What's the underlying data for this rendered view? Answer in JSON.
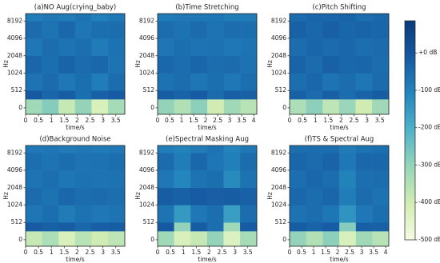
{
  "chart_data": {
    "type": "spectrogram",
    "colormap": [
      "#f5fbe3",
      "#d2edb3",
      "#97d5b9",
      "#4fb3c8",
      "#2386bd",
      "#1659a2",
      "#0a3a78"
    ],
    "yscale": "symlog",
    "linthresh": 512,
    "base": 2,
    "colorbar": {
      "ylim": [
        -500,
        86
      ],
      "yticks": [
        {
          "value": 0,
          "label": "+0 dB"
        },
        {
          "value": -100,
          "label": "-100 dB"
        },
        {
          "value": -200,
          "label": "-200 dB"
        },
        {
          "value": -300,
          "label": "-300 dB"
        },
        {
          "value": -400,
          "label": "-400 dB"
        },
        {
          "value": -500,
          "label": "-500 dB"
        }
      ]
    },
    "panels": [
      {
        "title": "(a)NO Aug(crying_baby)",
        "xlabel": "time/s",
        "ylabel": "Hz",
        "xlim": [
          0,
          3.85
        ],
        "xticks": [
          0,
          0.5,
          1,
          1.5,
          2,
          2.5,
          3,
          3.5
        ],
        "ylim": [
          -190,
          11025
        ],
        "yticks": [
          0,
          512,
          1024,
          2048,
          4096,
          8192
        ],
        "time_bins": [
          0,
          0.64,
          1.28,
          1.92,
          2.56,
          3.2,
          3.85
        ],
        "freq_bins": [
          -190,
          256,
          512,
          1024,
          2048,
          4096,
          8192,
          11025
        ],
        "values": [
          [
            -320,
            -280,
            -380,
            -300,
            -420,
            -330
          ],
          [
            -10,
            -40,
            -20,
            -60,
            -30,
            -15
          ],
          [
            -70,
            -50,
            -80,
            -60,
            -90,
            -55
          ],
          [
            -40,
            -60,
            -35,
            -50,
            -45,
            -70
          ],
          [
            -80,
            -55,
            -70,
            -60,
            -85,
            -65
          ],
          [
            -50,
            -70,
            -45,
            -75,
            -60,
            -55
          ],
          [
            -90,
            -75,
            -85,
            -70,
            -95,
            -80
          ]
        ]
      },
      {
        "title": "(b)Time Stretching",
        "xlabel": "time/s",
        "ylabel": "Hz",
        "xlim": [
          0,
          4.13
        ],
        "xticks": [
          0,
          0.5,
          1,
          1.5,
          2,
          2.5,
          3,
          3.5,
          4
        ],
        "ylim": [
          -190,
          11025
        ],
        "yticks": [
          0,
          512,
          1024,
          2048,
          4096,
          8192
        ],
        "time_bins": [
          0,
          0.69,
          1.38,
          2.07,
          2.76,
          3.45,
          4.13
        ],
        "freq_bins": [
          -190,
          256,
          512,
          1024,
          2048,
          4096,
          8192,
          11025
        ],
        "values": [
          [
            -300,
            -350,
            -290,
            -400,
            -320,
            -360
          ],
          [
            -20,
            -35,
            -15,
            -50,
            -25,
            -30
          ],
          [
            -65,
            -55,
            -75,
            -60,
            -80,
            -60
          ],
          [
            -45,
            -55,
            -40,
            -55,
            -50,
            -65
          ],
          [
            -75,
            -60,
            -70,
            -65,
            -80,
            -70
          ],
          [
            -55,
            -65,
            -50,
            -70,
            -55,
            -60
          ],
          [
            -85,
            -80,
            -80,
            -75,
            -90,
            -85
          ]
        ]
      },
      {
        "title": "(c)Pitch Shifting",
        "xlabel": "time/s",
        "ylabel": "Hz",
        "xlim": [
          0,
          3.85
        ],
        "xticks": [
          0,
          0.5,
          1,
          1.5,
          2,
          2.5,
          3,
          3.5
        ],
        "ylim": [
          -190,
          11025
        ],
        "yticks": [
          0,
          512,
          1024,
          2048,
          4096,
          8192
        ],
        "time_bins": [
          0,
          0.64,
          1.28,
          1.92,
          2.56,
          3.2,
          3.85
        ],
        "freq_bins": [
          -190,
          256,
          512,
          1024,
          2048,
          4096,
          8192,
          11025
        ],
        "values": [
          [
            -340,
            -290,
            -370,
            -310,
            -400,
            -320
          ],
          [
            -30,
            -50,
            -25,
            -55,
            -35,
            -20
          ],
          [
            -60,
            -45,
            -70,
            -55,
            -75,
            -50
          ],
          [
            -35,
            -50,
            -30,
            -45,
            -40,
            -55
          ],
          [
            -55,
            -40,
            -50,
            -45,
            -60,
            -50
          ],
          [
            -30,
            -45,
            -25,
            -40,
            -35,
            -40
          ],
          [
            -50,
            -40,
            -45,
            -35,
            -55,
            -45
          ]
        ]
      },
      {
        "title": "(d)Background Noise",
        "xlabel": "time/s",
        "ylabel": "Hz",
        "xlim": [
          0,
          3.85
        ],
        "xticks": [
          0,
          0.5,
          1,
          1.5,
          2,
          2.5,
          3,
          3.5
        ],
        "ylim": [
          -190,
          11025
        ],
        "yticks": [
          0,
          512,
          1024,
          2048,
          4096,
          8192
        ],
        "time_bins": [
          0,
          0.64,
          1.28,
          1.92,
          2.56,
          3.2,
          3.85
        ],
        "freq_bins": [
          -190,
          256,
          512,
          1024,
          2048,
          4096,
          8192,
          11025
        ],
        "values": [
          [
            -380,
            -340,
            -420,
            -360,
            -400,
            -370
          ],
          [
            -15,
            -30,
            -20,
            -45,
            -25,
            -20
          ],
          [
            -75,
            -60,
            -85,
            -65,
            -80,
            -70
          ],
          [
            -50,
            -65,
            -45,
            -55,
            -50,
            -60
          ],
          [
            -70,
            -60,
            -75,
            -65,
            -70,
            -65
          ],
          [
            -60,
            -70,
            -55,
            -70,
            -65,
            -60
          ],
          [
            -80,
            -75,
            -85,
            -80,
            -85,
            -80
          ]
        ]
      },
      {
        "title": "(e)Spectral Masking Aug",
        "xlabel": "time/s",
        "ylabel": "Hz",
        "xlim": [
          0,
          3.85
        ],
        "xticks": [
          0,
          0.5,
          1,
          1.5,
          2,
          2.5,
          3,
          3.5
        ],
        "ylim": [
          -190,
          11025
        ],
        "yticks": [
          0,
          512,
          1024,
          2048,
          4096,
          8192
        ],
        "time_bins": [
          0,
          0.64,
          1.28,
          1.92,
          2.56,
          3.2,
          3.85
        ],
        "freq_bins": [
          -190,
          256,
          512,
          1024,
          2048,
          4096,
          8192,
          11025
        ],
        "values": [
          [
            -320,
            -420,
            -380,
            -300,
            -430,
            -330
          ],
          [
            -10,
            -300,
            -20,
            -60,
            -320,
            -15
          ],
          [
            -70,
            -150,
            -80,
            -60,
            -160,
            -55
          ],
          [
            -20,
            -30,
            -15,
            -25,
            -20,
            -30
          ],
          [
            -80,
            -110,
            -70,
            -60,
            -120,
            -65
          ],
          [
            -50,
            -90,
            -45,
            -75,
            -95,
            -55
          ],
          [
            -90,
            -100,
            -85,
            -70,
            -105,
            -80
          ]
        ]
      },
      {
        "title": "(f)TS & Spectral Aug",
        "xlabel": "time/s",
        "ylabel": "Hz",
        "xlim": [
          0,
          4.13
        ],
        "xticks": [
          0,
          0.5,
          1,
          1.5,
          2,
          2.5,
          3,
          3.5,
          4
        ],
        "ylim": [
          -190,
          11025
        ],
        "yticks": [
          0,
          512,
          1024,
          2048,
          4096,
          8192
        ],
        "time_bins": [
          0,
          0.69,
          1.38,
          2.07,
          2.76,
          3.45,
          4.13
        ],
        "freq_bins": [
          -190,
          256,
          512,
          1024,
          2048,
          4096,
          8192,
          11025
        ],
        "values": [
          [
            -300,
            -350,
            -290,
            -420,
            -320,
            -360
          ],
          [
            -20,
            -35,
            -15,
            -280,
            -25,
            -30
          ],
          [
            -65,
            -55,
            -75,
            -140,
            -80,
            -60
          ],
          [
            -45,
            -55,
            -40,
            -90,
            -50,
            -65
          ],
          [
            -60,
            -45,
            -55,
            -100,
            -60,
            -55
          ],
          [
            -40,
            -50,
            -35,
            -80,
            -45,
            -45
          ],
          [
            -60,
            -55,
            -55,
            -85,
            -65,
            -60
          ]
        ]
      }
    ]
  }
}
